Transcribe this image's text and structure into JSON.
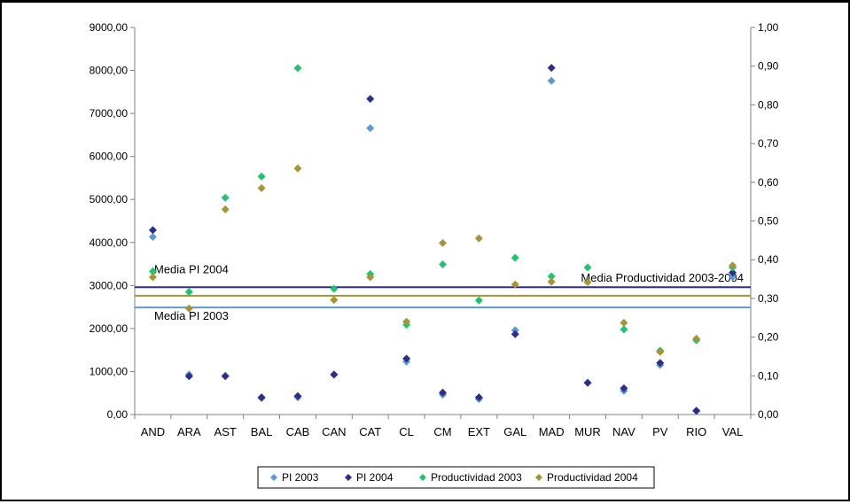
{
  "chart_data": {
    "type": "scatter",
    "categories": [
      "AND",
      "ARA",
      "AST",
      "BAL",
      "CAB",
      "CAN",
      "CAT",
      "CL",
      "CM",
      "EXT",
      "GAL",
      "MAD",
      "MUR",
      "NAV",
      "PV",
      "RIO",
      "VAL"
    ],
    "series": [
      {
        "name": "PI 2003",
        "axis": "left",
        "color": "#5b9bd5",
        "values": [
          4130,
          930,
          900,
          380,
          400,
          930,
          6660,
          1230,
          460,
          360,
          1960,
          7760,
          740,
          550,
          1150,
          80,
          3200
        ]
      },
      {
        "name": "PI 2004",
        "axis": "left",
        "color": "#2e2e8a",
        "values": [
          4290,
          890,
          890,
          400,
          430,
          930,
          7340,
          1300,
          510,
          400,
          1870,
          8060,
          740,
          610,
          1200,
          90,
          3300
        ]
      },
      {
        "name": "Productividad 2003",
        "axis": "right",
        "color": "#1ec46e",
        "values": [
          0.37,
          0.317,
          0.56,
          0.615,
          0.895,
          0.325,
          0.363,
          0.232,
          0.388,
          0.295,
          0.405,
          0.357,
          0.38,
          0.22,
          0.165,
          0.192,
          0.38
        ]
      },
      {
        "name": "Productividad 2004",
        "axis": "right",
        "color": "#a89432",
        "values": [
          0.355,
          0.274,
          0.53,
          0.585,
          0.636,
          0.296,
          0.355,
          0.24,
          0.443,
          0.455,
          0.336,
          0.343,
          0.342,
          0.237,
          0.162,
          0.196,
          0.385
        ]
      }
    ],
    "reference_lines": [
      {
        "label": "Media PI 2004",
        "axis": "left",
        "value": 2960,
        "color": "#2e2e8a"
      },
      {
        "label": "Media PI 2003",
        "axis": "left",
        "value": 2490,
        "color": "#5b9bd5"
      },
      {
        "label": "Media Productividad 2003-2004",
        "axis": "right",
        "value": 0.307,
        "color": "#a89432"
      }
    ],
    "y_left": {
      "min": 0,
      "max": 9000,
      "step": 1000,
      "tick_labels": [
        "0,00",
        "1000,00",
        "2000,00",
        "3000,00",
        "4000,00",
        "5000,00",
        "6000,00",
        "7000,00",
        "8000,00",
        "9000,00"
      ]
    },
    "y_right": {
      "min": 0,
      "max": 1,
      "step": 0.1,
      "tick_labels": [
        "0,00",
        "0,10",
        "0,20",
        "0,30",
        "0,40",
        "0,50",
        "0,60",
        "0,70",
        "0,80",
        "0,90",
        "1,00"
      ]
    },
    "title": "",
    "xlabel": "",
    "ylabel": "",
    "grid": false,
    "legend_position": "bottom"
  }
}
